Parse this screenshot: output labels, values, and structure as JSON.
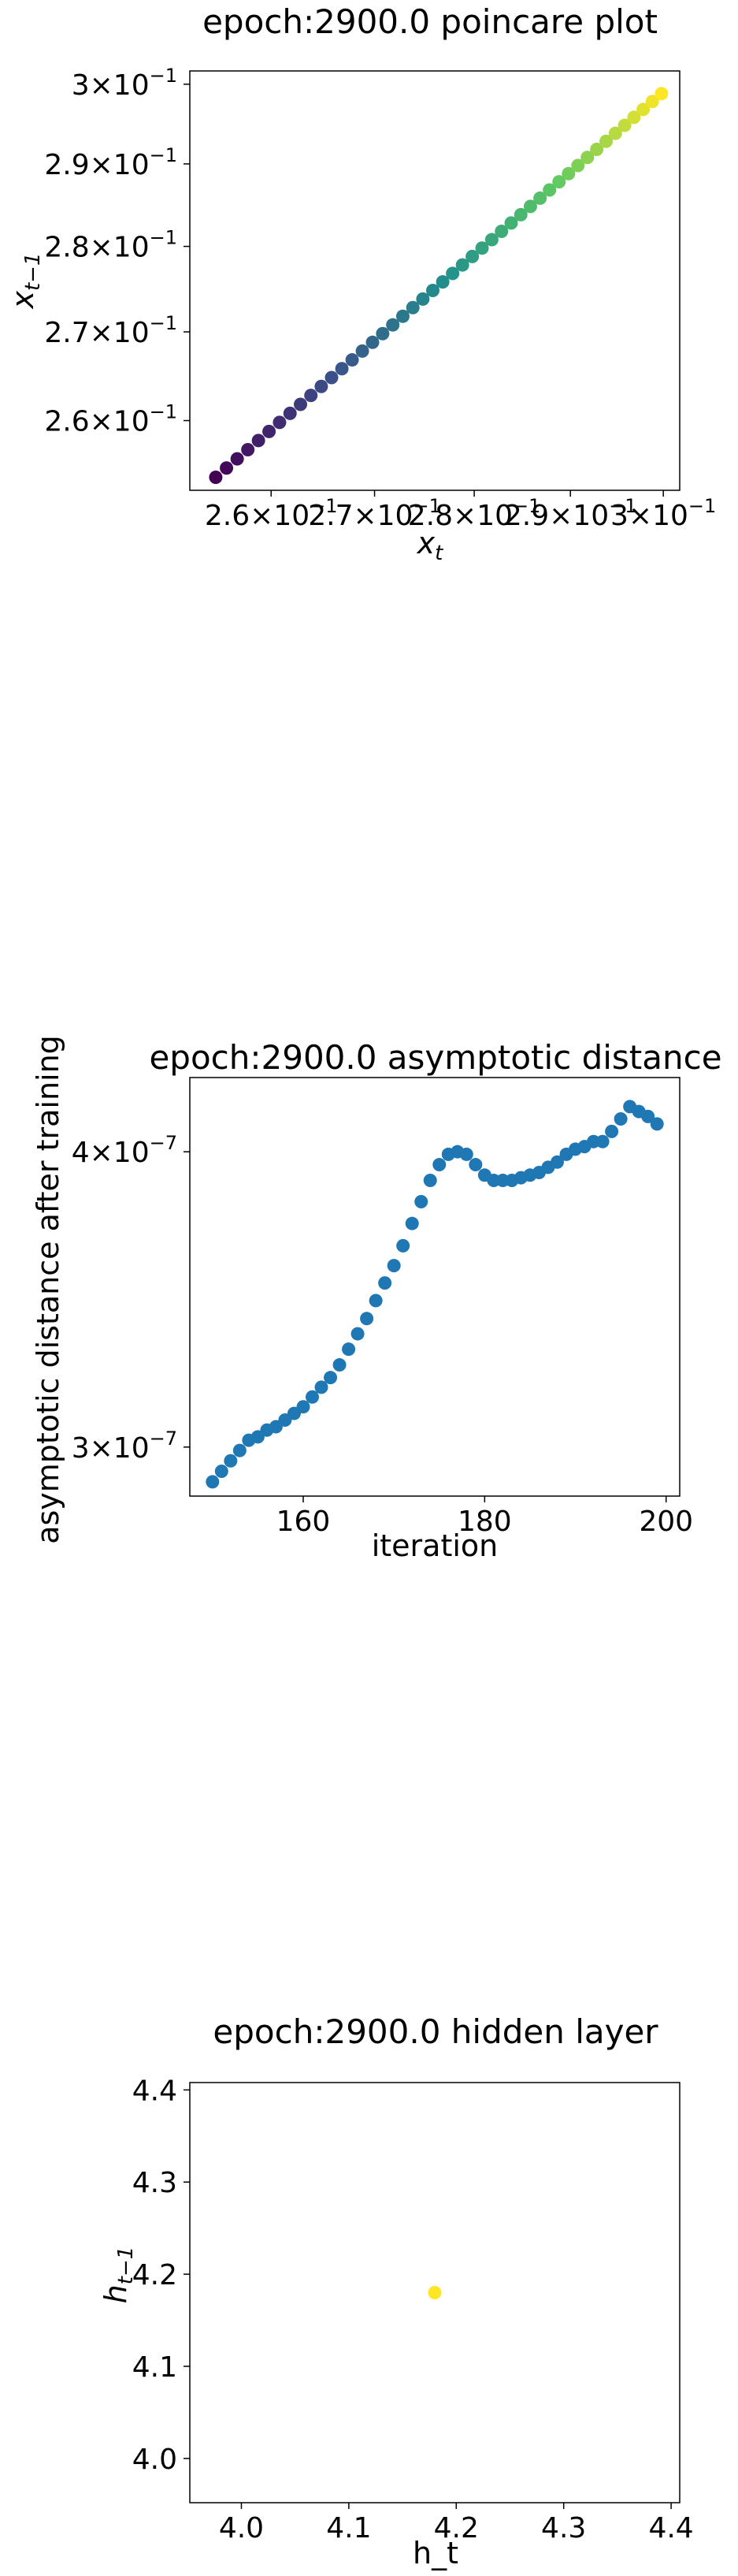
{
  "chart_data": [
    {
      "type": "scatter",
      "title": "epoch:2900.0 poincare plot",
      "xlabel": "x",
      "xlabel_sub": "t",
      "ylabel": "x",
      "ylabel_sub": "t−1",
      "scale": "log",
      "xlim": [
        0.2524,
        0.3018
      ],
      "ylim": [
        0.2524,
        0.3017
      ],
      "xticks": [
        0.26,
        0.27,
        0.28,
        0.29,
        0.3
      ],
      "xtick_labels": [
        {
          "base": "2.6×10",
          "exp": "−1"
        },
        {
          "base": "2.7×10",
          "exp": "−1"
        },
        {
          "base": "2.8×10",
          "exp": "−1"
        },
        {
          "base": "2.9×10",
          "exp": "−1"
        },
        {
          "base": "3×10",
          "exp": "−1"
        }
      ],
      "yticks": [
        0.26,
        0.27,
        0.28,
        0.29,
        0.3
      ],
      "ytick_labels": [
        {
          "base": "2.6×10",
          "exp": "−1"
        },
        {
          "base": "2.7×10",
          "exp": "−1"
        },
        {
          "base": "2.8×10",
          "exp": "−1"
        },
        {
          "base": "2.9×10",
          "exp": "−1"
        },
        {
          "base": "3×10",
          "exp": "−1"
        }
      ],
      "colormap": "viridis",
      "x": [
        0.2548,
        0.2558,
        0.2568,
        0.2578,
        0.2588,
        0.2598,
        0.2608,
        0.2618,
        0.2628,
        0.2638,
        0.2648,
        0.2658,
        0.2668,
        0.2678,
        0.2688,
        0.2698,
        0.2708,
        0.2718,
        0.2728,
        0.2738,
        0.2748,
        0.2758,
        0.2768,
        0.2778,
        0.2788,
        0.2798,
        0.2808,
        0.2818,
        0.2828,
        0.2838,
        0.2848,
        0.2858,
        0.2868,
        0.2878,
        0.2888,
        0.2898,
        0.2908,
        0.2918,
        0.2928,
        0.2938,
        0.2948,
        0.2958,
        0.2968,
        0.2978,
        0.2988,
        0.2998
      ],
      "y": [
        0.2538,
        0.2548,
        0.2558,
        0.2568,
        0.2578,
        0.2588,
        0.2598,
        0.2608,
        0.2618,
        0.2628,
        0.2638,
        0.2648,
        0.2658,
        0.2668,
        0.2678,
        0.2688,
        0.2698,
        0.2708,
        0.2718,
        0.2728,
        0.2738,
        0.2748,
        0.2758,
        0.2768,
        0.2778,
        0.2788,
        0.2798,
        0.2808,
        0.2818,
        0.2828,
        0.2838,
        0.2848,
        0.2858,
        0.2868,
        0.2878,
        0.2888,
        0.2898,
        0.2908,
        0.2918,
        0.2928,
        0.2938,
        0.2948,
        0.2958,
        0.2968,
        0.2978,
        0.2988
      ]
    },
    {
      "type": "scatter",
      "title": "epoch:2900.0 asymptotic distance",
      "xlabel": "iteration",
      "ylabel": "asymptotic distance after training",
      "xscale": "linear",
      "yscale": "log",
      "xlim": [
        147.5,
        201.5
      ],
      "ylim": [
        2.86e-07,
        4.3e-07
      ],
      "xticks": [
        160,
        180,
        200
      ],
      "xtick_labels": [
        "160",
        "180",
        "200"
      ],
      "yticks": [
        3e-07,
        4e-07
      ],
      "ytick_labels": [
        {
          "base": "3×10",
          "exp": "−7"
        },
        {
          "base": "4×10",
          "exp": "−7"
        }
      ],
      "color": "#1f77b4",
      "x": [
        150,
        151,
        152,
        153,
        154,
        155,
        156,
        157,
        158,
        159,
        160,
        161,
        162,
        163,
        164,
        165,
        166,
        167,
        168,
        169,
        170,
        171,
        172,
        173,
        174,
        175,
        176,
        177,
        178,
        179,
        180,
        181,
        182,
        183,
        184,
        185,
        186,
        187,
        188,
        189,
        190,
        191,
        192,
        193,
        194,
        195,
        196,
        197,
        198,
        199
      ],
      "y": [
        2.9e-07,
        2.93e-07,
        2.96e-07,
        2.99e-07,
        3.02e-07,
        3.03e-07,
        3.05e-07,
        3.06e-07,
        3.08e-07,
        3.1e-07,
        3.12e-07,
        3.15e-07,
        3.18e-07,
        3.21e-07,
        3.25e-07,
        3.3e-07,
        3.35e-07,
        3.4e-07,
        3.46e-07,
        3.52e-07,
        3.58e-07,
        3.65e-07,
        3.73e-07,
        3.81e-07,
        3.89e-07,
        3.95e-07,
        3.99e-07,
        4e-07,
        3.99e-07,
        3.95e-07,
        3.91e-07,
        3.89e-07,
        3.89e-07,
        3.89e-07,
        3.9e-07,
        3.91e-07,
        3.92e-07,
        3.94e-07,
        3.96e-07,
        3.99e-07,
        4.01e-07,
        4.02e-07,
        4.04e-07,
        4.04e-07,
        4.08e-07,
        4.13e-07,
        4.18e-07,
        4.16e-07,
        4.14e-07,
        4.11e-07
      ]
    },
    {
      "type": "scatter",
      "title": "epoch:2900.0 hidden layer",
      "xlabel": "h_t",
      "ylabel": "h",
      "ylabel_sub": "t−1",
      "xlim": [
        3.952,
        4.408
      ],
      "ylim": [
        3.952,
        4.408
      ],
      "xticks": [
        4.0,
        4.1,
        4.2,
        4.3,
        4.4
      ],
      "xtick_labels": [
        "4.0",
        "4.1",
        "4.2",
        "4.3",
        "4.4"
      ],
      "yticks": [
        4.0,
        4.1,
        4.2,
        4.3,
        4.4
      ],
      "ytick_labels": [
        "4.0",
        "4.1",
        "4.2",
        "4.3",
        "4.4"
      ],
      "color": "#fde725",
      "x": [
        4.18
      ],
      "y": [
        4.18
      ]
    }
  ]
}
